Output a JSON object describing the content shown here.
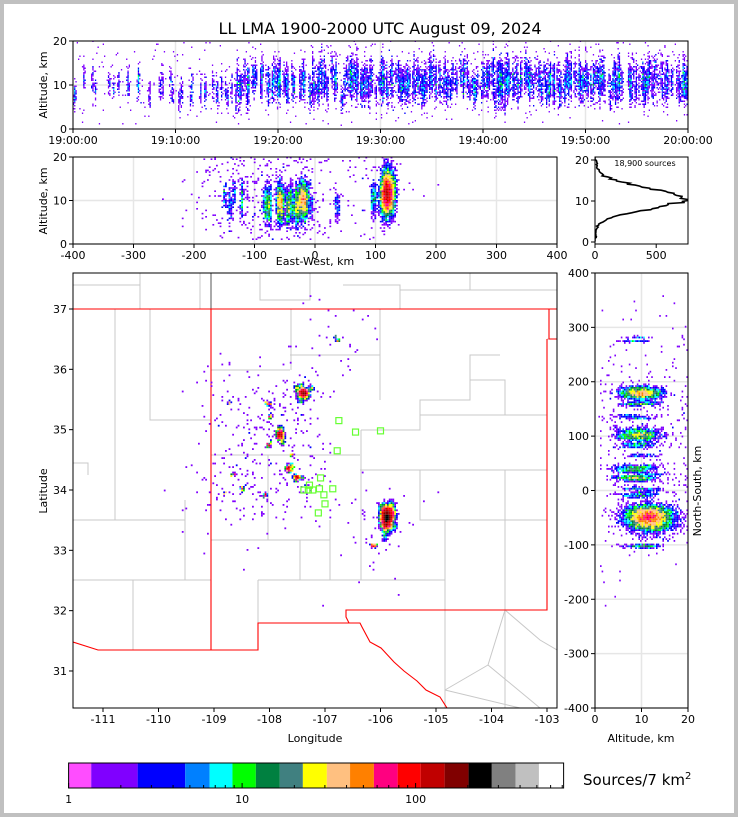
{
  "chart_data": {
    "type": "scatter",
    "title": "LL LMA 1900-2000 UTC August 09, 2024",
    "total_sources_label": "18,900 sources",
    "total_sources": 18900,
    "time_panel": {
      "ylabel": "Altitude, km",
      "xticks": [
        "19:00:00",
        "19:10:00",
        "19:20:00",
        "19:30:00",
        "19:40:00",
        "19:50:00",
        "20:00:00"
      ],
      "xlim_minutes": [
        0,
        60
      ],
      "yticks": [
        "0",
        "10",
        "20"
      ],
      "ylim": [
        0,
        20
      ]
    },
    "ew_panel": {
      "xlabel": "East-West, km",
      "ylabel": "Altitude, km",
      "xticks": [
        "-400",
        "-300",
        "-200",
        "-100",
        "0",
        "100",
        "200",
        "300",
        "400"
      ],
      "xlim": [
        -400,
        400
      ],
      "yticks": [
        "0",
        "10",
        "20"
      ],
      "ylim": [
        0,
        20
      ]
    },
    "histogram_panel": {
      "xticks": [
        "0",
        "500"
      ],
      "yticks": [
        "0",
        "10",
        "20"
      ],
      "bin_km": 0.25
    },
    "map_panel": {
      "xlabel": "Longitude",
      "ylabel": "Latitude",
      "xticks": [
        "-111",
        "-110",
        "-109",
        "-108",
        "-107",
        "-106",
        "-105",
        "-104",
        "-103"
      ],
      "yticks": [
        "31",
        "32",
        "33",
        "34",
        "35",
        "36",
        "37"
      ],
      "xlim": [
        -111.54,
        -102.82
      ],
      "ylim": [
        30.39,
        37.6
      ],
      "center": [
        -107.18,
        34.0
      ]
    },
    "ns_panel": {
      "xlabel": "Altitude, km",
      "ylabel": "North-South, km",
      "xticks": [
        "0",
        "10",
        "20"
      ],
      "yticks": [
        "400",
        "300",
        "200",
        "100",
        "0",
        "-100",
        "-200",
        "-300",
        "-400"
      ],
      "ylim": [
        -400,
        400
      ]
    },
    "colorbar": {
      "label": "Sources/7 km",
      "label_sup": "2",
      "ticks": [
        "1",
        "10",
        "100"
      ],
      "bounds": [
        1,
        1.35,
        2.5,
        4.7,
        6.5,
        8.8,
        12,
        16.5,
        22.4,
        30.8,
        41.9,
        57.5,
        78.8,
        107,
        147,
        202,
        275,
        377,
        514,
        713
      ],
      "colors": [
        "#ff4dff",
        "#8000ff",
        "#0000ff",
        "#0080ff",
        "#00ffff",
        "#00ff00",
        "#008040",
        "#408080",
        "#ffff00",
        "#ffc080",
        "#ff8000",
        "#ff0080",
        "#ff0000",
        "#c00000",
        "#800000",
        "#000000",
        "#808080",
        "#c0c0c0",
        "#ffffff"
      ]
    },
    "station_color": "#66ff33",
    "stations": [
      [
        -106.75,
        35.15
      ],
      [
        -106.45,
        34.96
      ],
      [
        -106.0,
        34.98
      ],
      [
        -106.78,
        34.65
      ],
      [
        -107.08,
        34.2
      ],
      [
        -107.28,
        34.08
      ],
      [
        -107.38,
        34.0
      ],
      [
        -107.22,
        34.0
      ],
      [
        -107.1,
        34.02
      ],
      [
        -107.02,
        33.92
      ],
      [
        -106.86,
        34.02
      ],
      [
        -107.0,
        33.77
      ],
      [
        -107.12,
        33.62
      ],
      [
        -107.3,
        34.0
      ]
    ],
    "clusters": [
      {
        "lon": -105.88,
        "lat": 33.55,
        "n": 7200,
        "alt": 11.5,
        "alt_sd": 2.6,
        "sdx_km": 5,
        "sdy_km": 10,
        "t": [
          16,
          60
        ]
      },
      {
        "lon": -107.4,
        "lat": 35.62,
        "n": 2100,
        "alt": 10,
        "alt_sd": 2.2,
        "sdx_km": 5,
        "sdy_km": 5,
        "t": [
          22,
          60
        ]
      },
      {
        "lon": -107.8,
        "lat": 34.92,
        "n": 1300,
        "alt": 9.5,
        "alt_sd": 2.2,
        "sdx_km": 3,
        "sdy_km": 6,
        "t": [
          10,
          60
        ]
      },
      {
        "lon": -107.65,
        "lat": 34.35,
        "n": 600,
        "alt": 9,
        "alt_sd": 2,
        "sdx_km": 3,
        "sdy_km": 3,
        "t": [
          5,
          50
        ]
      },
      {
        "lon": -107.5,
        "lat": 34.2,
        "n": 550,
        "alt": 9,
        "alt_sd": 2,
        "sdx_km": 3,
        "sdy_km": 3,
        "t": [
          5,
          50
        ]
      },
      {
        "lon": -106.12,
        "lat": 33.08,
        "n": 220,
        "alt": 10,
        "alt_sd": 2,
        "sdx_km": 3,
        "sdy_km": 2,
        "t": [
          30,
          60
        ]
      },
      {
        "lon": -108.02,
        "lat": 35.43,
        "n": 160,
        "alt": 9,
        "alt_sd": 2,
        "sdx_km": 2,
        "sdy_km": 2,
        "t": [
          0,
          25
        ]
      },
      {
        "lon": -108.02,
        "lat": 35.22,
        "n": 110,
        "alt": 9,
        "alt_sd": 2,
        "sdx_km": 2,
        "sdy_km": 2,
        "t": [
          0,
          25
        ]
      },
      {
        "lon": -108.02,
        "lat": 34.75,
        "n": 160,
        "alt": 9,
        "alt_sd": 2,
        "sdx_km": 2,
        "sdy_km": 2,
        "t": [
          0,
          25
        ]
      },
      {
        "lon": -108.65,
        "lat": 34.25,
        "n": 80,
        "alt": 10,
        "alt_sd": 2,
        "sdx_km": 2,
        "sdy_km": 2,
        "t": [
          0,
          20
        ]
      },
      {
        "lon": -108.5,
        "lat": 34.03,
        "n": 110,
        "alt": 10,
        "alt_sd": 2,
        "sdx_km": 2,
        "sdy_km": 2,
        "t": [
          0,
          20
        ]
      },
      {
        "lon": -108.08,
        "lat": 33.92,
        "n": 130,
        "alt": 9,
        "alt_sd": 2,
        "sdx_km": 2,
        "sdy_km": 2,
        "t": [
          0,
          20
        ]
      },
      {
        "lon": -108.82,
        "lat": 33.95,
        "n": 60,
        "alt": 10,
        "alt_sd": 2,
        "sdx_km": 2,
        "sdy_km": 2,
        "t": [
          0,
          20
        ]
      },
      {
        "lon": -108.72,
        "lat": 35.44,
        "n": 60,
        "alt": 10,
        "alt_sd": 2,
        "sdx_km": 2,
        "sdy_km": 2,
        "t": [
          0,
          20
        ]
      },
      {
        "lon": -106.78,
        "lat": 36.5,
        "n": 90,
        "alt": 10,
        "alt_sd": 2,
        "sdx_km": 2,
        "sdy_km": 2,
        "t": [
          30,
          60
        ]
      },
      {
        "lon": -107.58,
        "lat": 34.58,
        "n": 40,
        "alt": 9,
        "alt_sd": 2,
        "sdx_km": 2,
        "sdy_km": 2,
        "t": [
          0,
          30
        ]
      }
    ],
    "noise_sources": 450
  }
}
